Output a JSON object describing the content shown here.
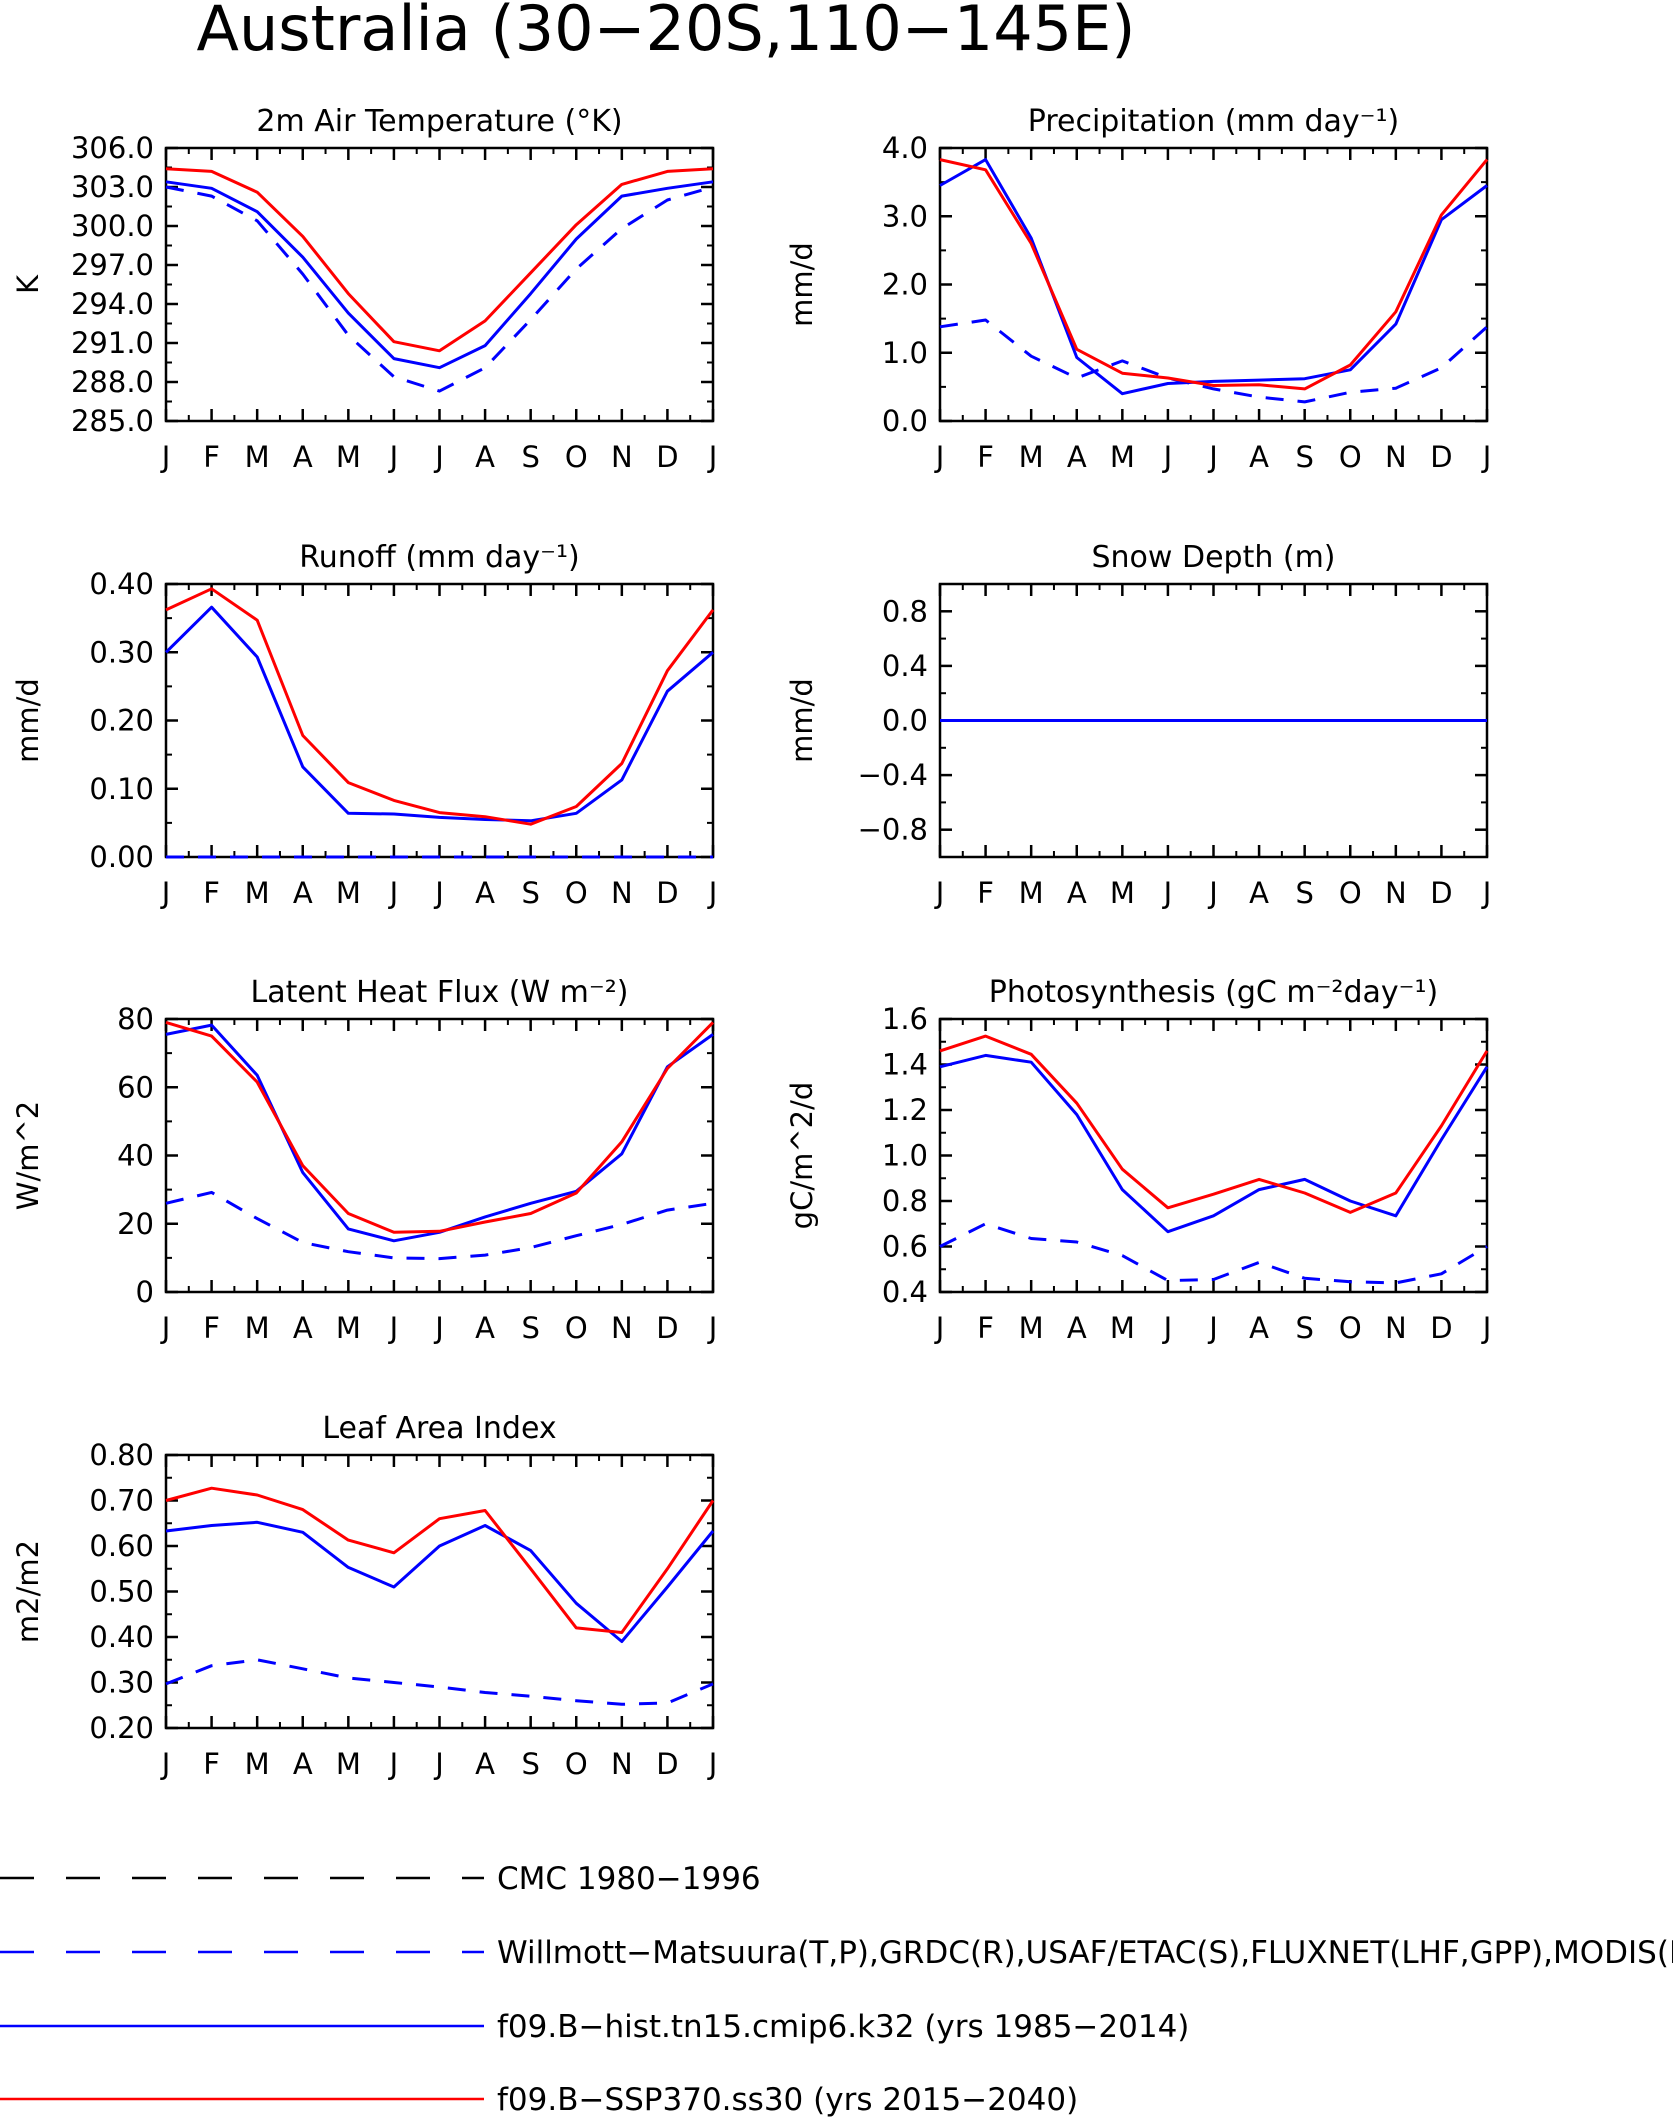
{
  "figure_title": "Australia (30−20S,110−145E)",
  "month_labels": [
    "J",
    "F",
    "M",
    "A",
    "M",
    "J",
    "J",
    "A",
    "S",
    "O",
    "N",
    "D",
    "J"
  ],
  "legend": [
    {
      "label": "CMC 1980−1996",
      "color": "#000000",
      "dash": true
    },
    {
      "label": "Willmott−Matsuura(T,P),GRDC(R),USAF/ETAC(S),FLUXNET(LHF,GPP),MODIS(L",
      "color": "#0000ff",
      "dash": true
    },
    {
      "label": "f09.B−hist.tn15.cmip6.k32 (yrs 1985−2014)",
      "color": "#0000ff",
      "dash": false
    },
    {
      "label": "f09.B−SSP370.ss30 (yrs 2015−2040)",
      "color": "#ff0000",
      "dash": false
    }
  ],
  "chart_data": [
    {
      "type": "line",
      "title": "2m Air Temperature (°K)",
      "ylabel": "K",
      "ylim": [
        285,
        306
      ],
      "yticks": [
        285,
        288,
        291,
        294,
        297,
        300,
        303,
        306
      ],
      "ytick_labels": [
        "285.0",
        "288.0",
        "291.0",
        "294.0",
        "297.0",
        "300.0",
        "303.0",
        "306.0"
      ],
      "categories": [
        "J",
        "F",
        "M",
        "A",
        "M",
        "J",
        "J",
        "A",
        "S",
        "O",
        "N",
        "D",
        "J"
      ],
      "series": [
        {
          "style": "obs",
          "color": "#0000ff",
          "dash": true,
          "values": [
            303.0,
            302.3,
            300.4,
            296.3,
            291.6,
            288.4,
            287.3,
            289.1,
            292.8,
            296.7,
            299.8,
            302.0,
            303.0
          ]
        },
        {
          "style": "hist",
          "color": "#0000ff",
          "dash": false,
          "values": [
            303.4,
            302.9,
            301.1,
            297.6,
            293.3,
            289.8,
            289.1,
            290.8,
            294.8,
            299.0,
            302.3,
            302.9,
            303.4
          ]
        },
        {
          "style": "ssp",
          "color": "#ff0000",
          "dash": false,
          "values": [
            304.4,
            304.2,
            302.6,
            299.2,
            294.8,
            291.1,
            290.4,
            292.7,
            296.4,
            300.1,
            303.2,
            304.2,
            304.4
          ]
        }
      ]
    },
    {
      "type": "line",
      "title": "Precipitation (mm day⁻¹)",
      "ylabel": "mm/d",
      "ylim": [
        0,
        4
      ],
      "yticks": [
        0,
        1,
        2,
        3,
        4
      ],
      "ytick_labels": [
        "0.0",
        "1.0",
        "2.0",
        "3.0",
        "4.0"
      ],
      "categories": [
        "J",
        "F",
        "M",
        "A",
        "M",
        "J",
        "J",
        "A",
        "S",
        "O",
        "N",
        "D",
        "J"
      ],
      "series": [
        {
          "style": "obs",
          "color": "#0000ff",
          "dash": true,
          "values": [
            1.38,
            1.48,
            0.95,
            0.63,
            0.88,
            0.63,
            0.47,
            0.35,
            0.28,
            0.42,
            0.48,
            0.78,
            1.38
          ]
        },
        {
          "style": "hist",
          "color": "#0000ff",
          "dash": false,
          "values": [
            3.45,
            3.83,
            2.68,
            0.93,
            0.4,
            0.55,
            0.58,
            0.6,
            0.62,
            0.75,
            1.42,
            2.95,
            3.45
          ]
        },
        {
          "style": "ssp",
          "color": "#ff0000",
          "dash": false,
          "values": [
            3.83,
            3.68,
            2.6,
            1.05,
            0.7,
            0.63,
            0.52,
            0.53,
            0.47,
            0.82,
            1.6,
            3.02,
            3.83
          ]
        }
      ]
    },
    {
      "type": "line",
      "title": "Runoff (mm day⁻¹)",
      "ylabel": "mm/d",
      "ylim": [
        0,
        0.4
      ],
      "yticks": [
        0,
        0.1,
        0.2,
        0.3,
        0.4
      ],
      "ytick_labels": [
        "0.00",
        "0.10",
        "0.20",
        "0.30",
        "0.40"
      ],
      "categories": [
        "J",
        "F",
        "M",
        "A",
        "M",
        "J",
        "J",
        "A",
        "S",
        "O",
        "N",
        "D",
        "J"
      ],
      "series": [
        {
          "style": "obs",
          "color": "#0000ff",
          "dash": true,
          "values": [
            0,
            0,
            0,
            0,
            0,
            0,
            0,
            0,
            0,
            0,
            0,
            0,
            0
          ]
        },
        {
          "style": "hist",
          "color": "#0000ff",
          "dash": false,
          "values": [
            0.3,
            0.366,
            0.293,
            0.132,
            0.064,
            0.063,
            0.058,
            0.055,
            0.053,
            0.064,
            0.113,
            0.243,
            0.3
          ]
        },
        {
          "style": "ssp",
          "color": "#ff0000",
          "dash": false,
          "values": [
            0.362,
            0.393,
            0.347,
            0.178,
            0.109,
            0.083,
            0.065,
            0.059,
            0.048,
            0.074,
            0.137,
            0.273,
            0.362
          ]
        }
      ]
    },
    {
      "type": "line",
      "title": "Snow Depth (m)",
      "ylabel": "mm/d",
      "ylim": [
        -1,
        1
      ],
      "yticks": [
        -0.8,
        -0.4,
        0,
        0.4,
        0.8
      ],
      "ytick_labels": [
        "−0.8",
        "−0.4",
        "0.0",
        "0.4",
        "0.8"
      ],
      "categories": [
        "J",
        "F",
        "M",
        "A",
        "M",
        "J",
        "J",
        "A",
        "S",
        "O",
        "N",
        "D",
        "J"
      ],
      "series": [
        {
          "style": "ssp",
          "color": "#ff0000",
          "dash": false,
          "values": [
            0,
            0,
            0,
            0,
            0,
            0,
            0,
            0,
            0,
            0,
            0,
            0,
            0
          ]
        },
        {
          "style": "hist",
          "color": "#0000ff",
          "dash": false,
          "values": [
            0,
            0,
            0,
            0,
            0,
            0,
            0,
            0,
            0,
            0,
            0,
            0,
            0
          ]
        },
        {
          "style": "obs",
          "color": "#0000ff",
          "dash": true,
          "values": [
            0,
            0,
            0,
            0,
            0,
            0,
            0,
            0,
            0,
            0,
            0,
            0,
            0
          ]
        }
      ]
    },
    {
      "type": "line",
      "title": "Latent Heat Flux (W m⁻²)",
      "ylabel": "W/m^2",
      "ylim": [
        0,
        80
      ],
      "yticks": [
        0,
        20,
        40,
        60,
        80
      ],
      "ytick_labels": [
        "0",
        "20",
        "40",
        "60",
        "80"
      ],
      "categories": [
        "J",
        "F",
        "M",
        "A",
        "M",
        "J",
        "J",
        "A",
        "S",
        "O",
        "N",
        "D",
        "J"
      ],
      "series": [
        {
          "style": "obs",
          "color": "#0000ff",
          "dash": true,
          "values": [
            26,
            29.2,
            21.5,
            14.5,
            11.8,
            10,
            9.8,
            10.8,
            13,
            16.5,
            19.8,
            24,
            26
          ]
        },
        {
          "style": "hist",
          "color": "#0000ff",
          "dash": false,
          "values": [
            75.5,
            78.2,
            63.5,
            35,
            18.5,
            15,
            17.5,
            22,
            26,
            29.5,
            40.5,
            66,
            75.5
          ]
        },
        {
          "style": "ssp",
          "color": "#ff0000",
          "dash": false,
          "values": [
            79,
            75,
            61.5,
            37,
            23,
            17.5,
            17.8,
            20.5,
            23,
            29,
            44,
            65.5,
            79
          ]
        }
      ]
    },
    {
      "type": "line",
      "title": "Photosynthesis (gC m⁻²day⁻¹)",
      "ylabel": "gC/m^2/d",
      "ylim": [
        0.4,
        1.6
      ],
      "yticks": [
        0.4,
        0.6,
        0.8,
        1.0,
        1.2,
        1.4,
        1.6
      ],
      "ytick_labels": [
        "0.4",
        "0.6",
        "0.8",
        "1.0",
        "1.2",
        "1.4",
        "1.6"
      ],
      "categories": [
        "J",
        "F",
        "M",
        "A",
        "M",
        "J",
        "J",
        "A",
        "S",
        "O",
        "N",
        "D",
        "J"
      ],
      "series": [
        {
          "style": "obs",
          "color": "#0000ff",
          "dash": true,
          "values": [
            0.6,
            0.7,
            0.635,
            0.62,
            0.56,
            0.45,
            0.455,
            0.53,
            0.46,
            0.445,
            0.44,
            0.48,
            0.6
          ]
        },
        {
          "style": "hist",
          "color": "#0000ff",
          "dash": false,
          "values": [
            1.39,
            1.44,
            1.41,
            1.18,
            0.85,
            0.665,
            0.735,
            0.85,
            0.895,
            0.8,
            0.735,
            1.07,
            1.39
          ]
        },
        {
          "style": "ssp",
          "color": "#ff0000",
          "dash": false,
          "values": [
            1.46,
            1.525,
            1.445,
            1.23,
            0.94,
            0.77,
            0.83,
            0.895,
            0.835,
            0.75,
            0.835,
            1.13,
            1.46
          ]
        }
      ]
    },
    {
      "type": "line",
      "title": "Leaf Area Index",
      "ylabel": "m2/m2",
      "ylim": [
        0.2,
        0.8
      ],
      "yticks": [
        0.2,
        0.3,
        0.4,
        0.5,
        0.6,
        0.7,
        0.8
      ],
      "ytick_labels": [
        "0.20",
        "0.30",
        "0.40",
        "0.50",
        "0.60",
        "0.70",
        "0.80"
      ],
      "categories": [
        "J",
        "F",
        "M",
        "A",
        "M",
        "J",
        "J",
        "A",
        "S",
        "O",
        "N",
        "D",
        "J"
      ],
      "series": [
        {
          "style": "obs",
          "color": "#0000ff",
          "dash": true,
          "values": [
            0.297,
            0.337,
            0.35,
            0.33,
            0.31,
            0.3,
            0.29,
            0.278,
            0.27,
            0.26,
            0.252,
            0.255,
            0.297
          ]
        },
        {
          "style": "hist",
          "color": "#0000ff",
          "dash": false,
          "values": [
            0.633,
            0.645,
            0.652,
            0.63,
            0.553,
            0.51,
            0.6,
            0.645,
            0.59,
            0.474,
            0.39,
            0.51,
            0.633
          ]
        },
        {
          "style": "ssp",
          "color": "#ff0000",
          "dash": false,
          "values": [
            0.7,
            0.727,
            0.712,
            0.68,
            0.613,
            0.585,
            0.66,
            0.678,
            0.55,
            0.42,
            0.41,
            0.55,
            0.7
          ]
        }
      ]
    }
  ]
}
